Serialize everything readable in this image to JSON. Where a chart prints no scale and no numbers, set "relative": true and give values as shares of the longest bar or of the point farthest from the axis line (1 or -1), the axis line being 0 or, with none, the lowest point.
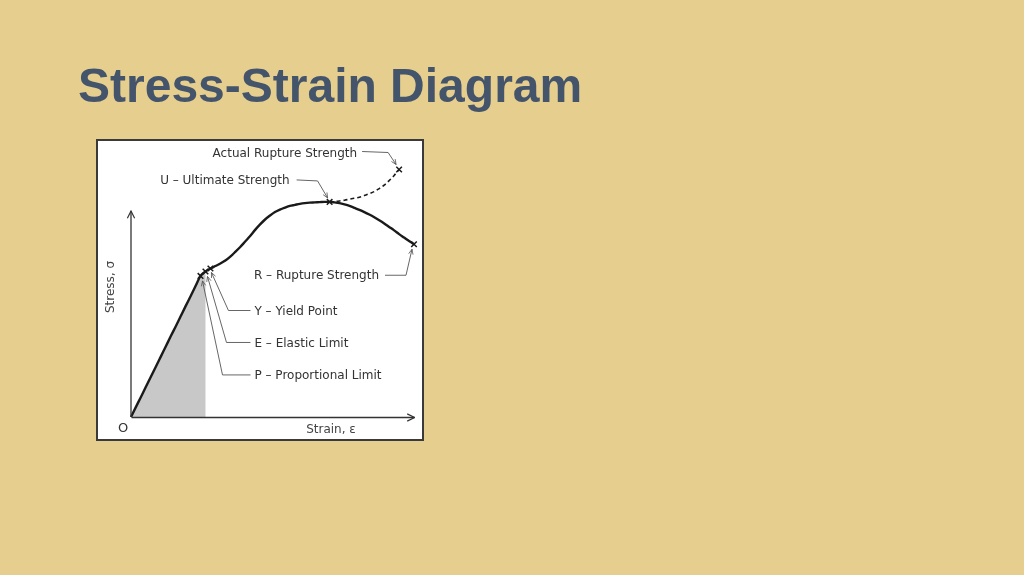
{
  "chart_data": {
    "type": "line",
    "title": "Stress-Strain Diagram",
    "xlabel": "Strain, ε",
    "ylabel": "Stress, σ",
    "relative": true,
    "categories": [
      null,
      null,
      null,
      null,
      null,
      null,
      null,
      null,
      null,
      null,
      null,
      null,
      null,
      null,
      null,
      null,
      null,
      null,
      null,
      null,
      null,
      null,
      null,
      null,
      null,
      null,
      null,
      null,
      null,
      null,
      null,
      null,
      null,
      null,
      null,
      null,
      null,
      null,
      null,
      null,
      null,
      null,
      null,
      null,
      null,
      null,
      null,
      null,
      null,
      null,
      null,
      null,
      null,
      null,
      null,
      null,
      null,
      null
    ],
    "series": [
      {
        "color": "#1a1a1a",
        "line_style": "solid",
        "values": [
          0,
          0.041,
          0.081,
          0.122,
          0.163,
          0.203,
          0.244,
          0.285,
          0.326,
          0.366,
          0.407,
          0.448,
          0.488,
          0.529,
          0.57,
          0.588,
          0.6,
          0.61,
          0.62,
          0.632,
          0.648,
          0.667,
          0.687,
          0.709,
          0.731,
          0.756,
          0.778,
          0.798,
          0.814,
          0.828,
          0.838,
          0.846,
          0.853,
          0.857,
          0.861,
          0.864,
          0.866,
          0.867,
          0.868,
          0.869,
          0.869,
          0.867,
          0.864,
          0.859,
          0.853,
          0.845,
          0.837,
          0.828,
          0.818,
          0.807,
          0.795,
          0.782,
          0.768,
          0.754,
          0.739,
          0.725,
          0.711,
          0.698
        ]
      },
      {
        "color": "#1a1a1a",
        "line_style": "dashed",
        "values": [
          null,
          null,
          null,
          null,
          null,
          null,
          null,
          null,
          null,
          null,
          null,
          null,
          null,
          null,
          null,
          null,
          null,
          null,
          null,
          null,
          null,
          null,
          null,
          null,
          null,
          null,
          null,
          null,
          null,
          null,
          null,
          null,
          null,
          null,
          null,
          null,
          null,
          null,
          null,
          null,
          0.869,
          0.87,
          0.873,
          0.876,
          0.88,
          0.884,
          0.888,
          0.895,
          0.902,
          0.911,
          0.923,
          0.937,
          0.955,
          0.976,
          1,
          null,
          null,
          null
        ]
      },
      {
        "type": "area",
        "color": "#c8c8c8",
        "values": [
          0,
          0.041,
          0.081,
          0.122,
          0.163,
          0.203,
          0.244,
          0.285,
          0.326,
          0.366,
          0.407,
          0.448,
          0.488,
          0.529,
          0.57,
          0.588,
          null,
          null,
          null,
          null,
          null,
          null,
          null,
          null,
          null,
          null,
          null,
          null,
          null,
          null,
          null,
          null,
          null,
          null,
          null,
          null,
          null,
          null,
          null,
          null,
          null,
          null,
          null,
          null,
          null,
          null,
          null,
          null,
          null,
          null,
          null,
          null,
          null,
          null,
          null,
          null,
          null,
          null
        ]
      },
      {
        "color": "#1a1a1a",
        "marker": "cross",
        "values": [
          null,
          null,
          null,
          null,
          null,
          null,
          null,
          null,
          null,
          null,
          null,
          null,
          null,
          null,
          0.57,
          0.588,
          0.6,
          null,
          null,
          null,
          null,
          null,
          null,
          null,
          null,
          null,
          null,
          null,
          null,
          null,
          null,
          null,
          null,
          null,
          null,
          null,
          null,
          null,
          null,
          null,
          0.869,
          null,
          null,
          null,
          null,
          null,
          null,
          null,
          null,
          null,
          null,
          null,
          null,
          null,
          1,
          null,
          null,
          0.698
        ]
      }
    ],
    "annotations": [
      "P – Proportional Limit",
      "E – Elastic Limit",
      "Y – Yield Point",
      "U – Ultimate Strength",
      "Actual Rupture Strength",
      "R – Rupture Strength",
      "O"
    ]
  }
}
